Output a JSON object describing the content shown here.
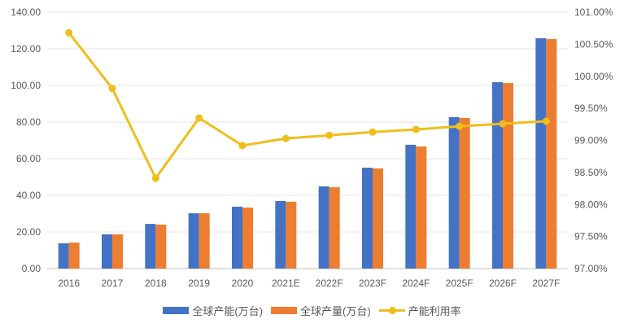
{
  "chart_data": {
    "type": "bar+line",
    "title": "",
    "categories": [
      "2016",
      "2017",
      "2018",
      "2019",
      "2020",
      "2021E",
      "2022F",
      "2023F",
      "2024F",
      "2025F",
      "2026F",
      "2027F"
    ],
    "series": [
      {
        "name": "全球产能(万台)",
        "type": "bar",
        "axis": "left",
        "color": "#4472C4",
        "values": [
          13.8,
          18.7,
          24.4,
          30.2,
          33.8,
          36.9,
          44.9,
          55.1,
          67.6,
          82.7,
          101.8,
          125.8
        ]
      },
      {
        "name": "全球产量(万台)",
        "type": "bar",
        "axis": "left",
        "color": "#ED7D31",
        "values": [
          14.2,
          18.7,
          24.0,
          30.2,
          33.3,
          36.5,
          44.4,
          54.7,
          66.7,
          82.2,
          101.3,
          125.3
        ]
      },
      {
        "name": "产能利用率",
        "type": "line",
        "axis": "right",
        "color": "#F0BE1A",
        "values": [
          100.68,
          99.81,
          98.41,
          99.35,
          98.92,
          99.03,
          99.08,
          99.13,
          99.17,
          99.22,
          99.26,
          99.3
        ]
      }
    ],
    "left_axis": {
      "ylim": [
        0,
        140
      ],
      "ticks": [
        "0.00",
        "20.00",
        "40.00",
        "60.00",
        "80.00",
        "100.00",
        "120.00",
        "140.00"
      ]
    },
    "right_axis": {
      "ylim": [
        97,
        101
      ],
      "ticks": [
        "97.00%",
        "97.50%",
        "98.00%",
        "98.50%",
        "99.00%",
        "99.50%",
        "100.00%",
        "100.50%",
        "101.00%"
      ]
    },
    "grid": true,
    "legend": "bottom"
  }
}
